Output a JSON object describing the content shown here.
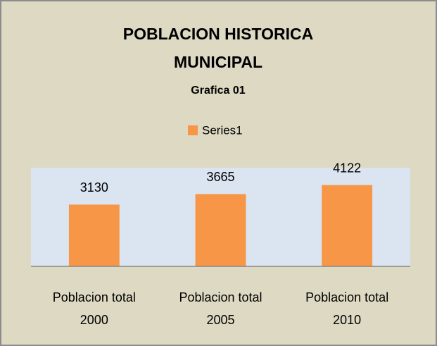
{
  "chart_data": {
    "type": "bar",
    "title": "POBLACION HISTORICA MUNICIPAL",
    "subtitle": "Grafica 01",
    "categories": [
      "Poblacion total 2000",
      "Poblacion total 2005",
      "Poblacion total 2010"
    ],
    "series": [
      {
        "name": "Series1",
        "color": "#f79646",
        "values": [
          3130,
          3665,
          4122
        ]
      }
    ],
    "ylim": [
      0,
      5000
    ],
    "legend": "top"
  }
}
